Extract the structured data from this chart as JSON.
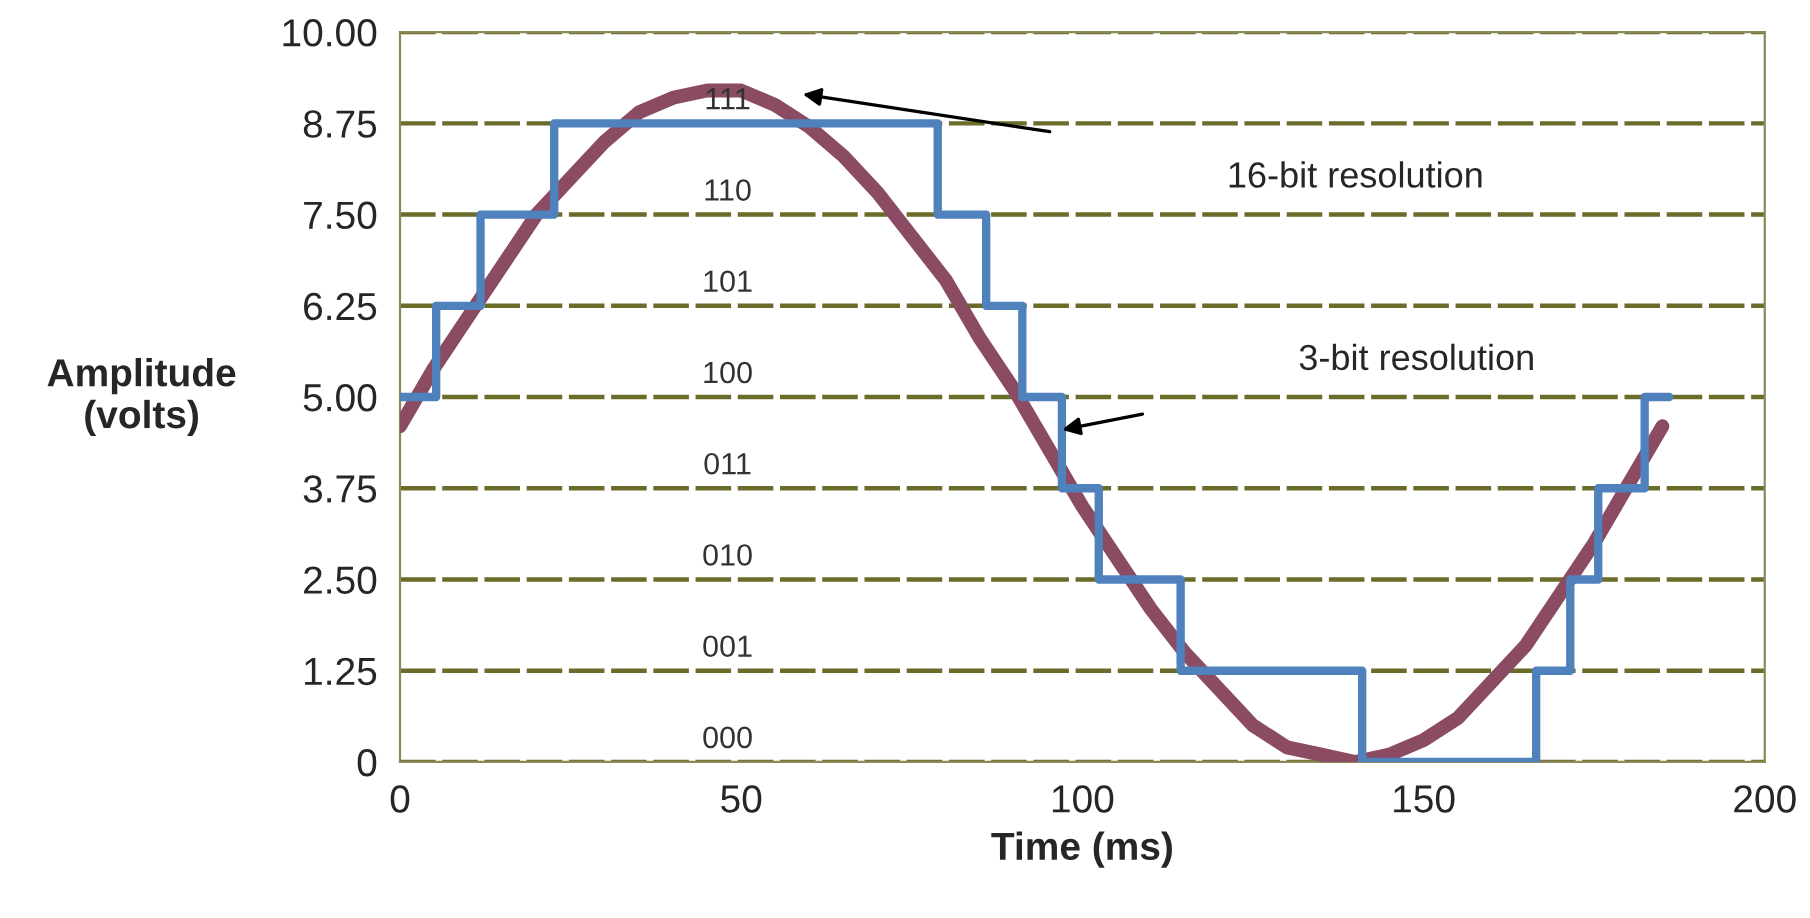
{
  "chart_data": {
    "type": "line",
    "xlabel": "Time (ms)",
    "ylabel": "Amplitude\n(volts)",
    "xlim": [
      0,
      200
    ],
    "xticks": [
      0,
      50,
      100,
      150,
      200
    ],
    "ylim": [
      0,
      10
    ],
    "yticks": [
      0,
      {
        "value": 1.25,
        "label": "1.25"
      },
      {
        "value": 2.5,
        "label": "2.50"
      },
      {
        "value": 3.75,
        "label": "3.75"
      },
      {
        "value": 5,
        "label": "5.00"
      },
      {
        "value": 6.25,
        "label": "6.25"
      },
      {
        "value": 7.5,
        "label": "7.50"
      },
      {
        "value": 8.75,
        "label": "8.75"
      },
      {
        "value": 10,
        "label": "10.00"
      }
    ],
    "grid": "y",
    "legend": false,
    "line_style": "solid",
    "marker": "none",
    "series": [
      {
        "color": "#8b4b62",
        "x": [
          0,
          5,
          10,
          15,
          20,
          25,
          30,
          35,
          40,
          45,
          50,
          55,
          60,
          65,
          70,
          75,
          80,
          85,
          90,
          95,
          100,
          105,
          110,
          115,
          120,
          125,
          130,
          135,
          140,
          145,
          150,
          155,
          160,
          165,
          170,
          175,
          180,
          185
        ],
        "values": [
          4.6,
          5.4,
          6.1,
          6.8,
          7.5,
          8.0,
          8.5,
          8.9,
          9.1,
          9.2,
          9.2,
          9.0,
          8.7,
          8.3,
          7.8,
          7.2,
          6.6,
          5.8,
          5.1,
          4.3,
          3.5,
          2.8,
          2.1,
          1.5,
          1.0,
          0.5,
          0.2,
          0.1,
          0.0,
          0.1,
          0.3,
          0.6,
          1.1,
          1.6,
          2.3,
          3.0,
          3.8,
          4.6
        ]
      },
      {
        "type": "step",
        "color": "#4f81bd",
        "x": [
          0,
          5.3,
          11.8,
          22.6,
          78.8,
          85.9,
          91.2,
          97,
          102.4,
          114.4,
          141,
          166.5,
          171.5,
          175.6,
          182.4,
          186
        ],
        "values": [
          5,
          6.25,
          7.5,
          8.75,
          7.5,
          6.25,
          5,
          3.75,
          2.5,
          1.25,
          0,
          1.25,
          2.5,
          3.75,
          5,
          5
        ]
      }
    ],
    "annotations": [
      "16-bit resolution",
      "3-bit resolution",
      "111",
      "110",
      "101",
      "100",
      "011",
      "010",
      "001",
      "000"
    ]
  }
}
